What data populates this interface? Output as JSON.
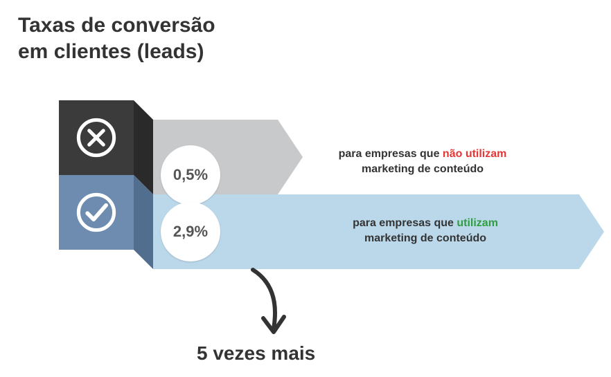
{
  "title": {
    "line1": "Taxas de conversão",
    "line2": "em clientes (leads)",
    "fontsize": 30,
    "color": "#333333"
  },
  "layout": {
    "iconBoxLeft": 85,
    "iconBoxTopDark": 145,
    "iconBoxTopBlue": 253,
    "iconBoxSize": 108,
    "foldOffset": 28,
    "arrowLeft": 221,
    "arrow1Top": 173,
    "arrow1BodyWidth": 180,
    "arrow2Top": 281,
    "arrow2BodyWidth": 615,
    "circle1Left": 232,
    "circle1Top": 210,
    "circle2Left": 232,
    "circle2Top": 292,
    "desc1Left": 440,
    "desc1Top": 212,
    "desc2Left": 454,
    "desc2Top": 312,
    "bottomLabelLeft": 284,
    "bottomLabelTop": 495
  },
  "colors": {
    "darkBox": "#3b3b3b",
    "darkFold": "#2a2a2a",
    "blueBox": "#6d8caf",
    "blueFold": "#526e8e",
    "grayArrow": "#c7c9cb",
    "lightBlueArrow": "#bbd7ea",
    "iconStroke": "#ffffff",
    "circleBg": "#ffffff",
    "circleText": "#555555",
    "descText": "#333333",
    "highlightNeg": "#e53535",
    "highlightPos": "#2e9e3f",
    "arrowCurve": "#333333"
  },
  "rows": [
    {
      "id": "no-content",
      "icon": "x-circle",
      "value": "0,5%",
      "desc_pre": "para empresas que ",
      "desc_hl": "não utilizam",
      "desc_post_line2": "marketing de conteúdo",
      "hlColor": "highlightNeg"
    },
    {
      "id": "with-content",
      "icon": "check-circle",
      "value": "2,9%",
      "desc_pre": "para empresas que ",
      "desc_hl": "utilizam",
      "desc_post_line2": "marketing de conteúdo",
      "hlColor": "highlightPos"
    }
  ],
  "bottom": {
    "label": "5 vezes mais",
    "fontsize": 28
  },
  "fonts": {
    "circleValue": 22,
    "descText": 16
  }
}
